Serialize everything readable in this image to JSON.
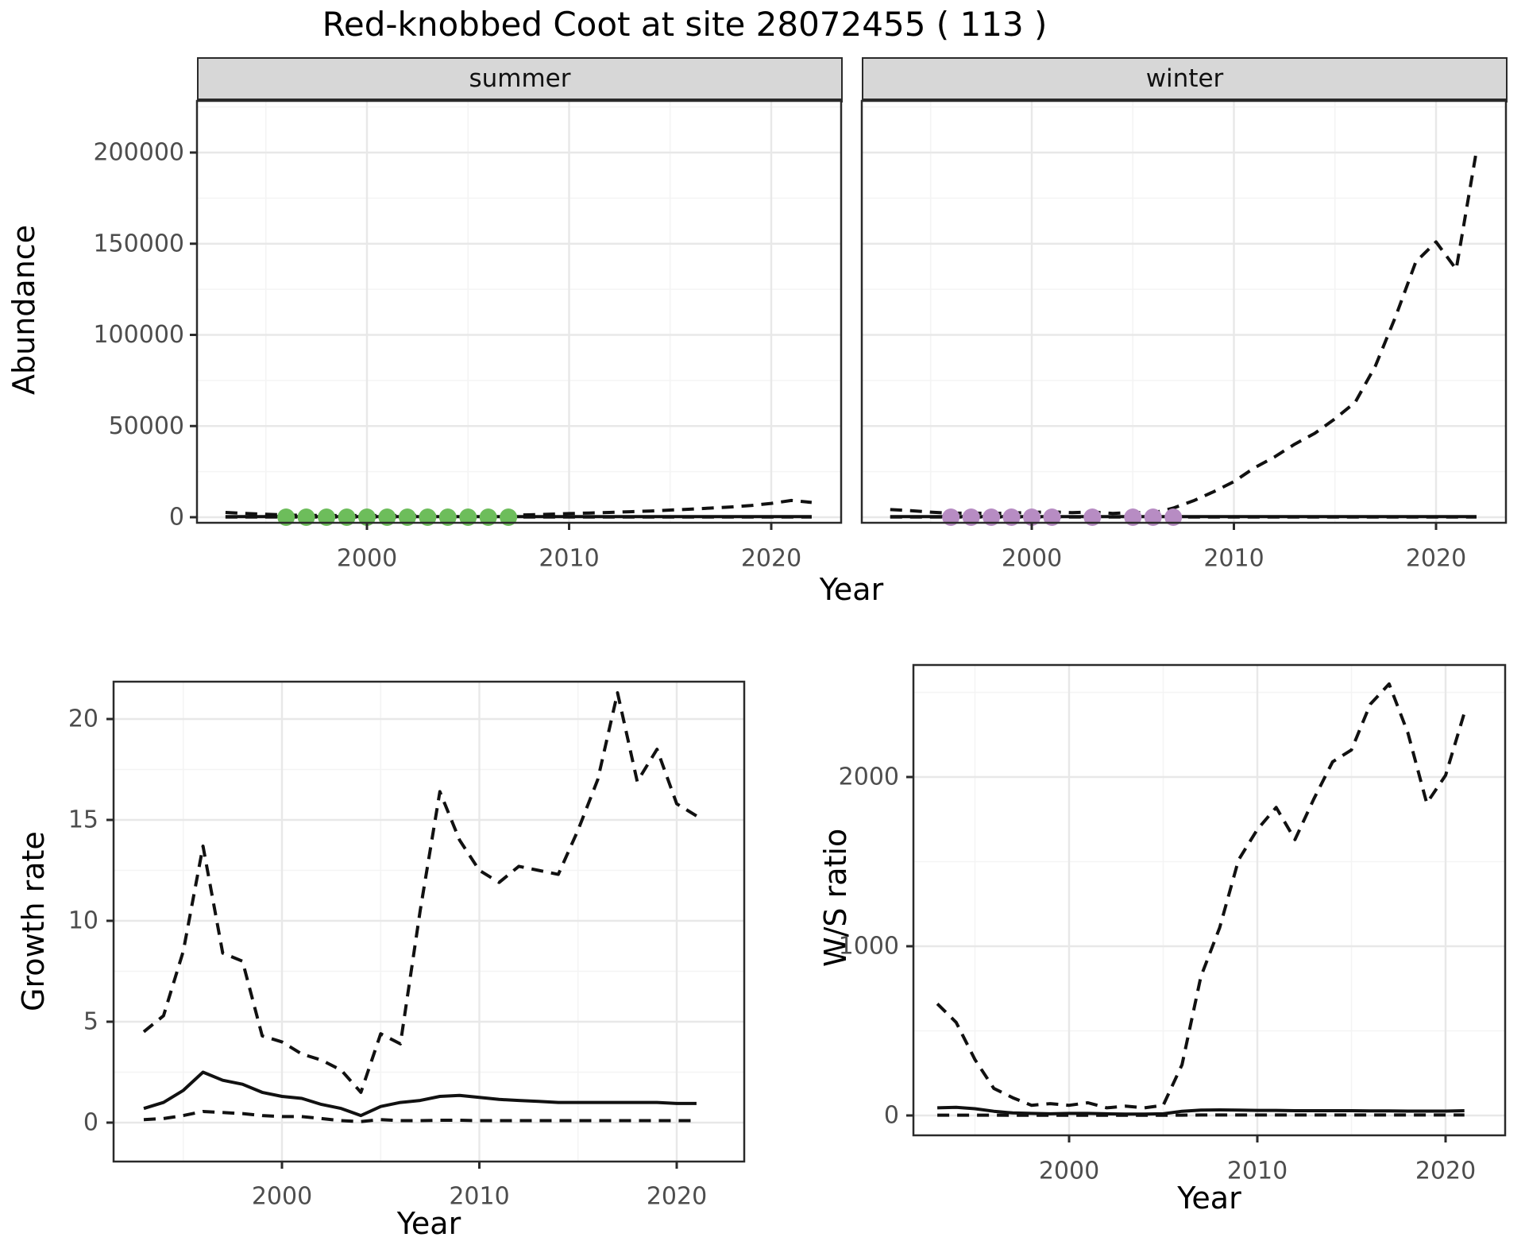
{
  "title": "Red-knobbed Coot at site 28072455 ( 113 )",
  "colors": {
    "summer_points": "#6dbd5b",
    "winter_points": "#b78cc3",
    "line": "#111111",
    "strip_bg": "#d7d7d7",
    "panel_border": "#2a2a2a",
    "grid_major": "#e8e8e8",
    "grid_minor": "#f4f4f4",
    "tick_text": "#4d4d4d"
  },
  "chart_data": [
    {
      "id": "abundance",
      "type": "line",
      "ylabel": "Abundance",
      "xlabel": "Year",
      "yticks": [
        0,
        50000,
        100000,
        150000,
        200000
      ],
      "xticks": [
        2000,
        2010,
        2020
      ],
      "xminor": [
        1995,
        2005,
        2015
      ],
      "yminor": [
        25000,
        75000,
        125000,
        175000,
        225000
      ],
      "xlim": [
        1991.6,
        2023.4
      ],
      "ylim": [
        -3000,
        228000
      ],
      "grid": "on",
      "legend_position": "none",
      "facets": [
        {
          "label": "summer",
          "points": {
            "name": "summer-observed-counts",
            "color_key": "summer_points",
            "years": [
              1996,
              1997,
              1998,
              1999,
              2000,
              2001,
              2002,
              2003,
              2004,
              2005,
              2006,
              2007
            ],
            "values": [
              0,
              0,
              0,
              0,
              0,
              0,
              0,
              0,
              0,
              0,
              0,
              0
            ]
          },
          "series": [
            {
              "name": "upper-ci",
              "style": "dashed",
              "years": [
                1993,
                1994,
                1995,
                1996,
                1997,
                1998,
                1999,
                2000,
                2001,
                2002,
                2003,
                2004,
                2005,
                2006,
                2007,
                2008,
                2009,
                2010,
                2011,
                2012,
                2013,
                2014,
                2015,
                2016,
                2017,
                2018,
                2019,
                2020,
                2021,
                2022
              ],
              "values": [
                2600,
                2100,
                1600,
                1200,
                1000,
                900,
                900,
                900,
                900,
                900,
                900,
                900,
                900,
                900,
                1000,
                1300,
                1600,
                2000,
                2300,
                2600,
                3000,
                3400,
                3900,
                4400,
                5000,
                5600,
                6400,
                7600,
                9200,
                8100
              ]
            },
            {
              "name": "lower-ci",
              "style": "dashed",
              "years": [
                1993,
                1994,
                1995,
                1996,
                1997,
                1998,
                1999,
                2000,
                2001,
                2002,
                2003,
                2004,
                2005,
                2006,
                2007,
                2008,
                2009,
                2010,
                2011,
                2012,
                2013,
                2014,
                2015,
                2016,
                2017,
                2018,
                2019,
                2020,
                2021,
                2022
              ],
              "values": [
                100,
                100,
                100,
                100,
                100,
                100,
                100,
                100,
                100,
                100,
                100,
                100,
                100,
                100,
                100,
                100,
                100,
                100,
                100,
                100,
                100,
                100,
                100,
                100,
                100,
                100,
                100,
                100,
                100,
                100
              ]
            },
            {
              "name": "estimate",
              "style": "solid",
              "years": [
                1993,
                1994,
                1995,
                1996,
                1997,
                1998,
                1999,
                2000,
                2001,
                2002,
                2003,
                2004,
                2005,
                2006,
                2007,
                2008,
                2009,
                2010,
                2011,
                2012,
                2013,
                2014,
                2015,
                2016,
                2017,
                2018,
                2019,
                2020,
                2021,
                2022
              ],
              "values": [
                300,
                300,
                300,
                300,
                300,
                300,
                300,
                300,
                300,
                300,
                300,
                300,
                300,
                300,
                300,
                300,
                300,
                300,
                300,
                300,
                300,
                300,
                300,
                300,
                300,
                300,
                300,
                300,
                300,
                300
              ]
            }
          ]
        },
        {
          "label": "winter",
          "points": {
            "name": "winter-observed-counts",
            "color_key": "winter_points",
            "years": [
              1996,
              1997,
              1998,
              1999,
              2000,
              2001,
              2003,
              2005,
              2006,
              2007
            ],
            "values": [
              0,
              0,
              0,
              0,
              0,
              0,
              0,
              0,
              0,
              0
            ]
          },
          "series": [
            {
              "name": "upper-ci",
              "style": "dashed",
              "years": [
                1993,
                1994,
                1995,
                1996,
                1997,
                1998,
                1999,
                2000,
                2001,
                2002,
                2003,
                2004,
                2005,
                2006,
                2007,
                2008,
                2009,
                2010,
                2011,
                2012,
                2013,
                2014,
                2015,
                2016,
                2017,
                2018,
                2019,
                2020,
                2021,
                2022
              ],
              "values": [
                4200,
                3600,
                2800,
                2200,
                2300,
                2100,
                2300,
                2600,
                2900,
                2500,
                2900,
                2100,
                2600,
                2300,
                5000,
                9000,
                14000,
                19500,
                27000,
                33000,
                40000,
                46000,
                54000,
                63000,
                83000,
                110000,
                140000,
                151000,
                136000,
                201000
              ]
            },
            {
              "name": "lower-ci",
              "style": "dashed",
              "years": [
                1993,
                1994,
                1995,
                1996,
                1997,
                1998,
                1999,
                2000,
                2001,
                2002,
                2003,
                2004,
                2005,
                2006,
                2007,
                2008,
                2009,
                2010,
                2011,
                2012,
                2013,
                2014,
                2015,
                2016,
                2017,
                2018,
                2019,
                2020,
                2021,
                2022
              ],
              "values": [
                100,
                100,
                100,
                100,
                100,
                100,
                100,
                100,
                100,
                100,
                100,
                100,
                100,
                100,
                100,
                100,
                100,
                100,
                100,
                100,
                100,
                100,
                100,
                100,
                100,
                100,
                100,
                100,
                100,
                100
              ]
            },
            {
              "name": "estimate",
              "style": "solid",
              "years": [
                1993,
                1994,
                1995,
                1996,
                1997,
                1998,
                1999,
                2000,
                2001,
                2002,
                2003,
                2004,
                2005,
                2006,
                2007,
                2008,
                2009,
                2010,
                2011,
                2012,
                2013,
                2014,
                2015,
                2016,
                2017,
                2018,
                2019,
                2020,
                2021,
                2022
              ],
              "values": [
                300,
                300,
                300,
                300,
                300,
                300,
                300,
                300,
                300,
                300,
                300,
                300,
                300,
                300,
                300,
                300,
                300,
                300,
                300,
                300,
                300,
                300,
                300,
                300,
                300,
                300,
                300,
                300,
                300,
                300
              ]
            }
          ]
        }
      ]
    },
    {
      "id": "growth_rate",
      "type": "line",
      "ylabel": "Growth rate",
      "xlabel": "Year",
      "yticks": [
        0,
        5,
        10,
        15,
        20
      ],
      "xticks": [
        2000,
        2010,
        2020
      ],
      "xminor": [
        1995,
        2005,
        2015
      ],
      "yminor": [
        2.5,
        7.5,
        12.5,
        17.5
      ],
      "xlim": [
        1991.5,
        2023.4
      ],
      "ylim": [
        -1.9,
        21.9
      ],
      "grid": "on",
      "series": [
        {
          "name": "upper-ci",
          "style": "dashed",
          "years": [
            1993,
            1994,
            1995,
            1996,
            1997,
            1998,
            1999,
            2000,
            2001,
            2002,
            2003,
            2004,
            2005,
            2006,
            2007,
            2008,
            2009,
            2010,
            2011,
            2012,
            2013,
            2014,
            2015,
            2016,
            2017,
            2018,
            2019,
            2020,
            2021
          ],
          "values": [
            4.5,
            5.3,
            8.5,
            13.7,
            8.4,
            8.0,
            4.3,
            4.0,
            3.4,
            3.1,
            2.6,
            1.5,
            4.4,
            3.9,
            10.5,
            16.4,
            14.0,
            12.5,
            11.9,
            12.7,
            12.5,
            12.3,
            14.5,
            17.0,
            21.3,
            16.9,
            18.5,
            15.8,
            15.2
          ]
        },
        {
          "name": "lower-ci",
          "style": "dashed",
          "years": [
            1993,
            1994,
            1995,
            1996,
            1997,
            1998,
            1999,
            2000,
            2001,
            2002,
            2003,
            2004,
            2005,
            2006,
            2007,
            2008,
            2009,
            2010,
            2011,
            2012,
            2013,
            2014,
            2015,
            2016,
            2017,
            2018,
            2019,
            2020,
            2021
          ],
          "values": [
            0.15,
            0.2,
            0.35,
            0.55,
            0.5,
            0.45,
            0.35,
            0.3,
            0.3,
            0.2,
            0.1,
            0.05,
            0.15,
            0.1,
            0.1,
            0.12,
            0.12,
            0.1,
            0.1,
            0.1,
            0.1,
            0.1,
            0.1,
            0.1,
            0.1,
            0.1,
            0.1,
            0.1,
            0.1
          ]
        },
        {
          "name": "estimate",
          "style": "solid",
          "years": [
            1993,
            1994,
            1995,
            1996,
            1997,
            1998,
            1999,
            2000,
            2001,
            2002,
            2003,
            2004,
            2005,
            2006,
            2007,
            2008,
            2009,
            2010,
            2011,
            2012,
            2013,
            2014,
            2015,
            2016,
            2017,
            2018,
            2019,
            2020,
            2021
          ],
          "values": [
            0.7,
            1.0,
            1.6,
            2.5,
            2.1,
            1.9,
            1.5,
            1.3,
            1.2,
            0.9,
            0.7,
            0.35,
            0.8,
            1.0,
            1.1,
            1.3,
            1.35,
            1.25,
            1.15,
            1.1,
            1.05,
            1.0,
            1.0,
            1.0,
            1.0,
            1.0,
            1.0,
            0.95,
            0.95
          ]
        }
      ]
    },
    {
      "id": "ws_ratio",
      "type": "line",
      "ylabel": "W/S ratio",
      "xlabel": "Year",
      "yticks": [
        0,
        1000,
        2000
      ],
      "xticks": [
        2000,
        2010,
        2020
      ],
      "xminor": [
        1995,
        2005,
        2015
      ],
      "yminor": [
        500,
        1500,
        2500
      ],
      "xlim": [
        1991.8,
        2023.2
      ],
      "ylim": [
        -120,
        2660
      ],
      "grid": "on",
      "series": [
        {
          "name": "upper-ci",
          "style": "dashed",
          "years": [
            1993,
            1994,
            1995,
            1996,
            1997,
            1998,
            1999,
            2000,
            2001,
            2002,
            2003,
            2004,
            2005,
            2006,
            2007,
            2008,
            2009,
            2010,
            2011,
            2012,
            2013,
            2014,
            2015,
            2016,
            2017,
            2018,
            2019,
            2020,
            2021
          ],
          "values": [
            660,
            550,
            330,
            160,
            105,
            60,
            70,
            60,
            75,
            45,
            55,
            45,
            60,
            300,
            820,
            1110,
            1510,
            1690,
            1820,
            1630,
            1870,
            2090,
            2160,
            2430,
            2550,
            2260,
            1845,
            2010,
            2380
          ]
        },
        {
          "name": "lower-ci",
          "style": "dashed",
          "years": [
            1993,
            1994,
            1995,
            1996,
            1997,
            1998,
            1999,
            2000,
            2001,
            2002,
            2003,
            2004,
            2005,
            2006,
            2007,
            2008,
            2009,
            2010,
            2011,
            2012,
            2013,
            2014,
            2015,
            2016,
            2017,
            2018,
            2019,
            2020,
            2021
          ],
          "values": [
            2,
            2,
            2,
            2,
            1,
            1,
            1,
            1,
            1,
            1,
            1,
            1,
            1,
            2,
            3,
            3,
            3,
            3,
            3,
            3,
            3,
            3,
            3,
            3,
            3,
            3,
            3,
            3,
            3
          ]
        },
        {
          "name": "estimate",
          "style": "solid",
          "years": [
            1993,
            1994,
            1995,
            1996,
            1997,
            1998,
            1999,
            2000,
            2001,
            2002,
            2003,
            2004,
            2005,
            2006,
            2007,
            2008,
            2009,
            2010,
            2011,
            2012,
            2013,
            2014,
            2015,
            2016,
            2017,
            2018,
            2019,
            2020,
            2021
          ],
          "values": [
            45,
            48,
            40,
            25,
            15,
            12,
            10,
            12,
            12,
            10,
            8,
            8,
            10,
            25,
            32,
            33,
            32,
            30,
            30,
            28,
            28,
            28,
            28,
            27,
            27,
            26,
            26,
            26,
            28
          ]
        }
      ]
    }
  ]
}
